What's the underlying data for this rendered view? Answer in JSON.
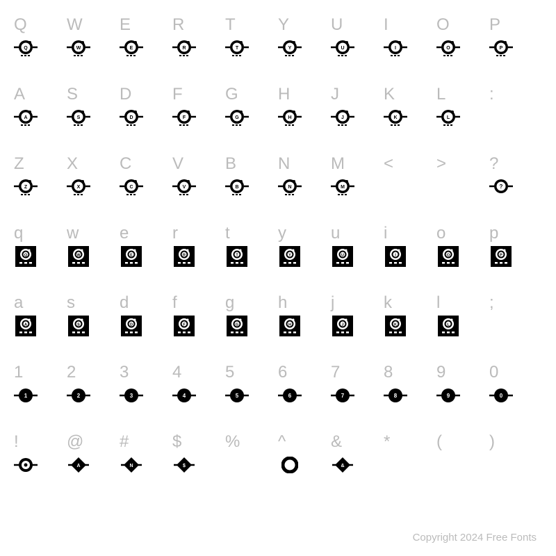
{
  "background_color": "#ffffff",
  "label_color": "#bbbbbb",
  "glyph_color": "#000000",
  "label_fontsize": 24,
  "copyright": "Copyright 2024 Free Fonts",
  "rows": [
    {
      "labels": [
        "Q",
        "W",
        "E",
        "R",
        "T",
        "Y",
        "U",
        "I",
        "O",
        "P"
      ],
      "glyph_type": "piggy",
      "inner": [
        "Q",
        "W",
        "E",
        "R",
        "T",
        "Y",
        "U",
        "I",
        "O",
        "P"
      ]
    },
    {
      "labels": [
        "A",
        "S",
        "D",
        "F",
        "G",
        "H",
        "J",
        "K",
        "L",
        ":"
      ],
      "glyph_type": "piggy",
      "inner": [
        "A",
        "S",
        "D",
        "F",
        "G",
        "H",
        "J",
        "K",
        "L",
        ""
      ]
    },
    {
      "labels": [
        "Z",
        "X",
        "C",
        "V",
        "B",
        "N",
        "M",
        "<",
        ">",
        "?"
      ],
      "glyph_type": "piggy",
      "inner": [
        "Z",
        "X",
        "C",
        "V",
        "B",
        "N",
        "M",
        "",
        "",
        "?"
      ]
    },
    {
      "labels": [
        "q",
        "w",
        "e",
        "r",
        "t",
        "y",
        "u",
        "i",
        "o",
        "p"
      ],
      "glyph_type": "square",
      "inner": [
        "Q",
        "W",
        "E",
        "R",
        "T",
        "Y",
        "U",
        "I",
        "O",
        "P"
      ]
    },
    {
      "labels": [
        "a",
        "s",
        "d",
        "f",
        "g",
        "h",
        "j",
        "k",
        "l",
        ";"
      ],
      "glyph_type": "square",
      "inner": [
        "A",
        "S",
        "D",
        "F",
        "G",
        "H",
        "J",
        "K",
        "L",
        ""
      ]
    },
    {
      "labels": [
        "1",
        "2",
        "3",
        "4",
        "5",
        "6",
        "7",
        "8",
        "9",
        "0"
      ],
      "glyph_type": "dot",
      "inner": [
        "1",
        "2",
        "3",
        "4",
        "5",
        "6",
        "7",
        "8",
        "9",
        "0"
      ]
    },
    {
      "labels": [
        "!",
        "@",
        "#",
        "$",
        "%",
        "^",
        "&",
        "*",
        "(",
        ")"
      ],
      "glyph_type": "special",
      "inner": [
        "!",
        "@",
        "#",
        "$",
        "",
        "^",
        "&",
        "",
        "",
        ""
      ]
    }
  ]
}
